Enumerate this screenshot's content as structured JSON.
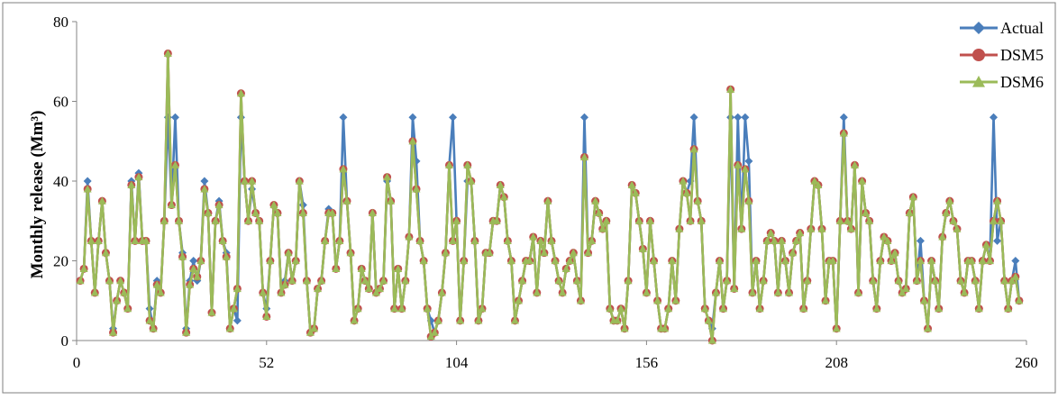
{
  "chart_data": {
    "type": "line",
    "title": "",
    "xlabel": "",
    "ylabel": "Monthly release (Mm³)",
    "xlim": [
      0,
      260
    ],
    "ylim": [
      0,
      80
    ],
    "xticks": [
      0,
      52,
      104,
      156,
      208,
      260
    ],
    "yticks": [
      0,
      20,
      40,
      60,
      80
    ],
    "grid": false,
    "legend_position": "top-right",
    "series": [
      {
        "name": "Actual",
        "color": "#4a7ebb",
        "marker": "diamond",
        "values": [
          15,
          18,
          40,
          25,
          12,
          25,
          35,
          22,
          15,
          3,
          10,
          15,
          12,
          8,
          40,
          25,
          42,
          25,
          25,
          8,
          3,
          15,
          12,
          30,
          56,
          34,
          56,
          30,
          22,
          3,
          15,
          20,
          15,
          20,
          40,
          32,
          7,
          30,
          35,
          25,
          22,
          3,
          8,
          5,
          56,
          40,
          30,
          38,
          32,
          30,
          12,
          8,
          20,
          34,
          32,
          12,
          15,
          22,
          15,
          20,
          40,
          34,
          15,
          2,
          3,
          13,
          15,
          25,
          33,
          32,
          18,
          25,
          56,
          35,
          22,
          5,
          8,
          18,
          15,
          13,
          32,
          12,
          13,
          15,
          40,
          35,
          8,
          18,
          8,
          15,
          26,
          56,
          45,
          25,
          20,
          8,
          5,
          2,
          5,
          12,
          22,
          44,
          56,
          30,
          5,
          20,
          40,
          40,
          25,
          5,
          8,
          22,
          22,
          30,
          30,
          39,
          36,
          25,
          20,
          5,
          10,
          15,
          20,
          20,
          26,
          12,
          25,
          22,
          35,
          25,
          20,
          15,
          12,
          18,
          20,
          22,
          15,
          10,
          56,
          22,
          25,
          35,
          32,
          28,
          30,
          8,
          5,
          5,
          8,
          3,
          15,
          39,
          37,
          30,
          23,
          12,
          30,
          20,
          10,
          3,
          3,
          8,
          20,
          10,
          28,
          40,
          37,
          40,
          56,
          35,
          30,
          8,
          5,
          3,
          12,
          20,
          8,
          15,
          56,
          13,
          56,
          28,
          56,
          45,
          12,
          20,
          8,
          15,
          25,
          27,
          25,
          12,
          25,
          20,
          12,
          22,
          25,
          27,
          8,
          15,
          28,
          40,
          39,
          28,
          10,
          20,
          20,
          3,
          30,
          56,
          30,
          28,
          44,
          12,
          40,
          32,
          30,
          15,
          8,
          20,
          26,
          25,
          20,
          22,
          15,
          12,
          13,
          32,
          36,
          15,
          25,
          10,
          3,
          20,
          15,
          8,
          26,
          32,
          35,
          30,
          28,
          15,
          12,
          20,
          20,
          15,
          8,
          20,
          24,
          20,
          56,
          25,
          30,
          15,
          8,
          15,
          20,
          10
        ]
      },
      {
        "name": "DSM5",
        "color": "#c0504d",
        "marker": "circle",
        "values": [
          15,
          18,
          38,
          25,
          12,
          25,
          35,
          22,
          15,
          2,
          10,
          15,
          12,
          8,
          39,
          25,
          41,
          25,
          25,
          5,
          3,
          14,
          12,
          30,
          72,
          34,
          44,
          30,
          21,
          2,
          14,
          18,
          16,
          20,
          38,
          32,
          7,
          30,
          34,
          25,
          21,
          3,
          8,
          13,
          62,
          40,
          30,
          40,
          32,
          30,
          12,
          6,
          20,
          34,
          32,
          12,
          14,
          22,
          15,
          20,
          40,
          32,
          15,
          2,
          3,
          13,
          15,
          25,
          32,
          32,
          18,
          25,
          43,
          35,
          22,
          5,
          8,
          18,
          15,
          13,
          32,
          12,
          13,
          15,
          41,
          35,
          8,
          18,
          8,
          15,
          26,
          50,
          38,
          25,
          20,
          8,
          1,
          2,
          5,
          12,
          22,
          44,
          25,
          30,
          5,
          20,
          44,
          40,
          25,
          5,
          8,
          22,
          22,
          30,
          30,
          39,
          36,
          25,
          20,
          5,
          10,
          15,
          20,
          20,
          26,
          12,
          25,
          22,
          35,
          25,
          20,
          15,
          12,
          18,
          20,
          22,
          15,
          10,
          46,
          22,
          25,
          35,
          32,
          28,
          30,
          8,
          5,
          5,
          8,
          3,
          15,
          39,
          37,
          30,
          23,
          12,
          30,
          20,
          10,
          3,
          3,
          8,
          20,
          10,
          28,
          40,
          37,
          30,
          48,
          35,
          30,
          8,
          5,
          0,
          12,
          20,
          8,
          15,
          63,
          13,
          44,
          28,
          43,
          35,
          12,
          20,
          8,
          15,
          25,
          27,
          25,
          12,
          25,
          20,
          12,
          22,
          25,
          27,
          8,
          15,
          28,
          40,
          39,
          28,
          10,
          20,
          20,
          3,
          30,
          52,
          30,
          28,
          44,
          12,
          40,
          32,
          30,
          15,
          8,
          20,
          26,
          25,
          20,
          22,
          15,
          12,
          13,
          32,
          36,
          15,
          20,
          10,
          3,
          20,
          15,
          8,
          26,
          32,
          35,
          30,
          28,
          15,
          12,
          20,
          20,
          15,
          8,
          20,
          24,
          20,
          30,
          35,
          30,
          15,
          8,
          15,
          16,
          10
        ]
      },
      {
        "name": "DSM6",
        "color": "#9bbb59",
        "marker": "triangle",
        "values": [
          15,
          18,
          38,
          25,
          12,
          25,
          35,
          22,
          15,
          2,
          10,
          15,
          12,
          8,
          39,
          25,
          41,
          25,
          25,
          5,
          3,
          14,
          12,
          30,
          72,
          34,
          44,
          30,
          21,
          2,
          14,
          18,
          16,
          20,
          38,
          32,
          7,
          30,
          34,
          25,
          21,
          3,
          8,
          13,
          62,
          40,
          30,
          40,
          32,
          30,
          12,
          6,
          20,
          34,
          32,
          12,
          14,
          22,
          15,
          20,
          40,
          32,
          15,
          2,
          3,
          13,
          15,
          25,
          32,
          32,
          18,
          25,
          43,
          35,
          22,
          5,
          8,
          18,
          15,
          13,
          32,
          12,
          13,
          15,
          41,
          35,
          8,
          18,
          8,
          15,
          26,
          50,
          38,
          25,
          20,
          8,
          1,
          2,
          5,
          12,
          22,
          44,
          25,
          30,
          5,
          20,
          44,
          40,
          25,
          5,
          8,
          22,
          22,
          30,
          30,
          39,
          36,
          25,
          20,
          5,
          10,
          15,
          20,
          20,
          26,
          12,
          25,
          22,
          35,
          25,
          20,
          15,
          12,
          18,
          20,
          22,
          15,
          10,
          46,
          22,
          25,
          35,
          32,
          28,
          30,
          8,
          5,
          5,
          8,
          3,
          15,
          39,
          37,
          30,
          23,
          12,
          30,
          20,
          10,
          3,
          3,
          8,
          20,
          10,
          28,
          40,
          37,
          30,
          48,
          35,
          30,
          8,
          5,
          0,
          12,
          20,
          8,
          15,
          63,
          13,
          44,
          28,
          43,
          35,
          12,
          20,
          8,
          15,
          25,
          27,
          25,
          12,
          25,
          20,
          12,
          22,
          25,
          27,
          8,
          15,
          28,
          40,
          39,
          28,
          10,
          20,
          20,
          3,
          30,
          52,
          30,
          28,
          44,
          12,
          40,
          32,
          30,
          15,
          8,
          20,
          26,
          25,
          20,
          22,
          15,
          12,
          13,
          32,
          36,
          15,
          20,
          10,
          3,
          20,
          15,
          8,
          26,
          32,
          35,
          30,
          28,
          15,
          12,
          20,
          20,
          15,
          8,
          20,
          24,
          20,
          30,
          35,
          30,
          15,
          8,
          15,
          16,
          10
        ]
      }
    ]
  }
}
